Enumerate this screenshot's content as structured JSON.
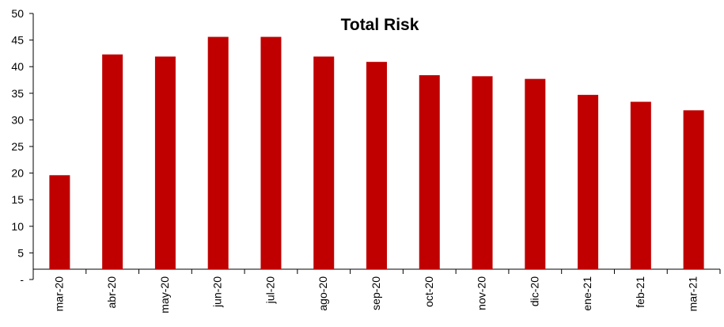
{
  "chart_data": {
    "type": "bar",
    "title": "Total Risk",
    "xlabel": "",
    "ylabel": "",
    "ylim": [
      0,
      50
    ],
    "yticks": [
      "-",
      "5",
      "10",
      "15",
      "20",
      "25",
      "30",
      "35",
      "40",
      "45",
      "50"
    ],
    "categories": [
      "mar-20",
      "abr-20",
      "may-20",
      "jun-20",
      "jul-20",
      "ago-20",
      "sep-20",
      "oct-20",
      "nov-20",
      "dic-20",
      "ene-21",
      "feb-21",
      "mar-21"
    ],
    "values": [
      19.6,
      42.3,
      41.9,
      45.6,
      45.6,
      41.9,
      40.9,
      38.4,
      38.2,
      37.7,
      34.7,
      33.4,
      31.8
    ],
    "bar_color": "#C00000",
    "grid": false,
    "legend": "none"
  }
}
